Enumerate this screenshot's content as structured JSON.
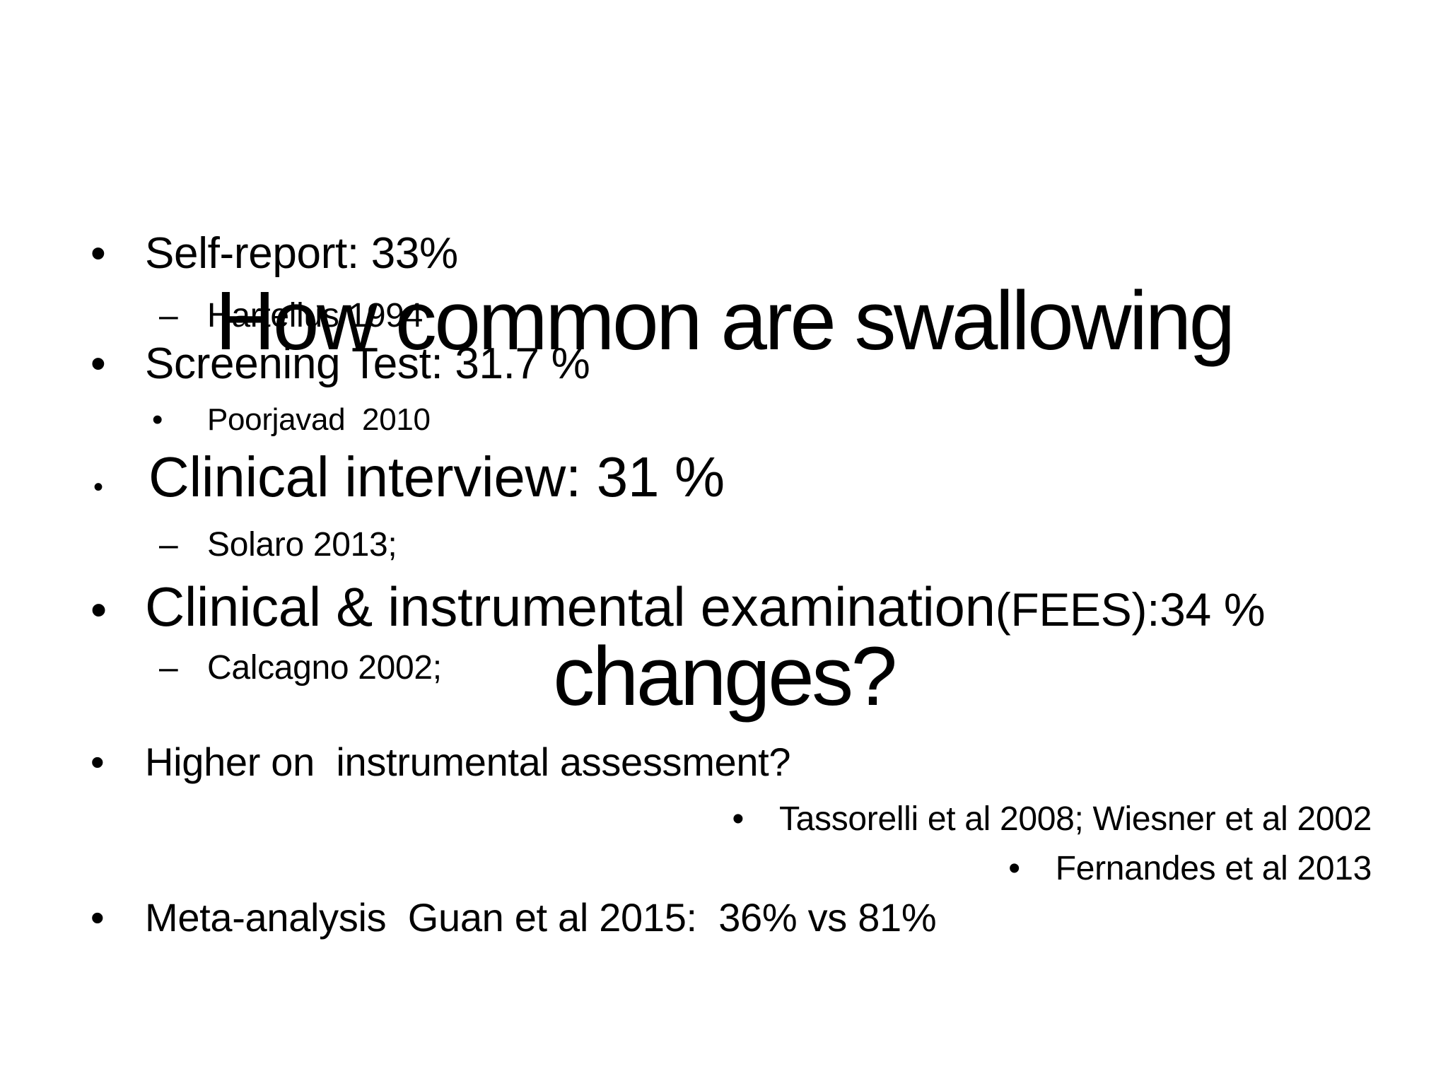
{
  "slide": {
    "colors": {
      "background": "#ffffff",
      "text": "#000000"
    },
    "title": {
      "line1": "How common are swallowing",
      "line2": "changes?"
    },
    "bullets": [
      {
        "level": 1,
        "marker": "•",
        "text": "Self-report: 33%"
      },
      {
        "level": 2,
        "marker": "–",
        "text": "Hartelius 1994"
      },
      {
        "level": 1,
        "marker": "•",
        "text": "Screening Test: 31.7 %"
      },
      {
        "level": 2,
        "marker": "•",
        "text": "Poorjavad  2010"
      },
      {
        "level": 1,
        "marker": "•",
        "text": "Clinical interview: 31 %"
      },
      {
        "level": 2,
        "marker": "–",
        "text": "Solaro 2013;"
      },
      {
        "level": 1,
        "marker": "•",
        "text": "Clinical & instrumental examination",
        "text_small": "(FEES):34 %"
      },
      {
        "level": 2,
        "marker": "–",
        "text": "Calcagno 2002;"
      },
      {
        "level": 1,
        "marker": "•",
        "text": "Higher on  instrumental assessment?"
      },
      {
        "level": 2,
        "marker": "•",
        "text": "Tassorelli et al 2008; Wiesner et al 2002"
      },
      {
        "level": 2,
        "marker": "•",
        "text": "Fernandes et al 2013"
      },
      {
        "level": 1,
        "marker": "•",
        "text": "Meta-analysis  Guan et al 2015:  36% vs 81%"
      }
    ]
  }
}
